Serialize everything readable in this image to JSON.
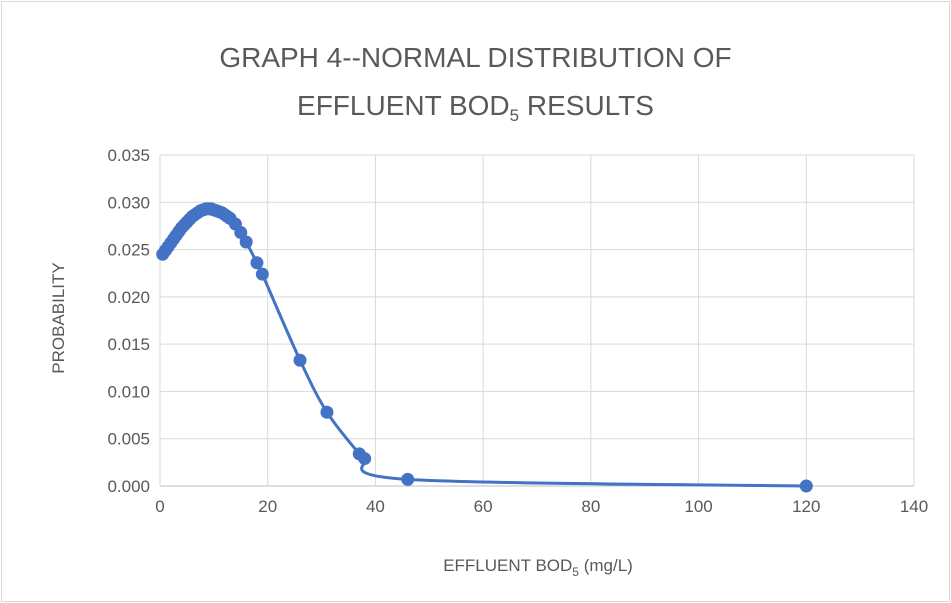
{
  "chart_data": {
    "type": "scatter",
    "title": {
      "line1": "GRAPH 4--NORMAL DISTRIBUTION OF",
      "line2_main": "EFFLUENT BOD",
      "line2_sub": "5",
      "line2_tail": " RESULTS"
    },
    "xlabel": {
      "main": "EFFLUENT BOD",
      "sub": "5",
      "tail": " (mg/L)"
    },
    "ylabel": "PROBABILITY",
    "xlim": [
      0,
      140
    ],
    "ylim": [
      0,
      0.035
    ],
    "x_ticks": [
      0,
      20,
      40,
      60,
      80,
      100,
      120,
      140
    ],
    "y_ticks": [
      "0.000",
      "0.005",
      "0.010",
      "0.015",
      "0.020",
      "0.025",
      "0.030",
      "0.035"
    ],
    "grid": true,
    "line_style": "smoothed line with markers",
    "series_color": "#4472c4",
    "series": [
      {
        "points": [
          [
            0.5,
            0.0245
          ],
          [
            1,
            0.0249
          ],
          [
            1.5,
            0.0253
          ],
          [
            2,
            0.0257
          ],
          [
            2.5,
            0.0261
          ],
          [
            3,
            0.0265
          ],
          [
            3.5,
            0.0269
          ],
          [
            4,
            0.0273
          ],
          [
            4.5,
            0.0276
          ],
          [
            5,
            0.0279
          ],
          [
            5.5,
            0.0282
          ],
          [
            6,
            0.0285
          ],
          [
            6.5,
            0.0287
          ],
          [
            7,
            0.0289
          ],
          [
            7.5,
            0.0291
          ],
          [
            8,
            0.0292
          ],
          [
            8.5,
            0.0293
          ],
          [
            9,
            0.0293
          ],
          [
            9.5,
            0.0293
          ],
          [
            10,
            0.0292
          ],
          [
            10.5,
            0.0291
          ],
          [
            11,
            0.029
          ],
          [
            11.5,
            0.0289
          ],
          [
            12,
            0.0287
          ],
          [
            12.5,
            0.0285
          ],
          [
            13,
            0.0283
          ],
          [
            14,
            0.0277
          ],
          [
            15,
            0.0268
          ],
          [
            16,
            0.0258
          ],
          [
            18,
            0.0236
          ],
          [
            19,
            0.0224
          ],
          [
            26,
            0.0133
          ],
          [
            31,
            0.0078
          ],
          [
            37,
            0.0034
          ],
          [
            38,
            0.0029
          ],
          [
            46,
            0.0007
          ],
          [
            120,
            0.0
          ]
        ]
      }
    ]
  }
}
